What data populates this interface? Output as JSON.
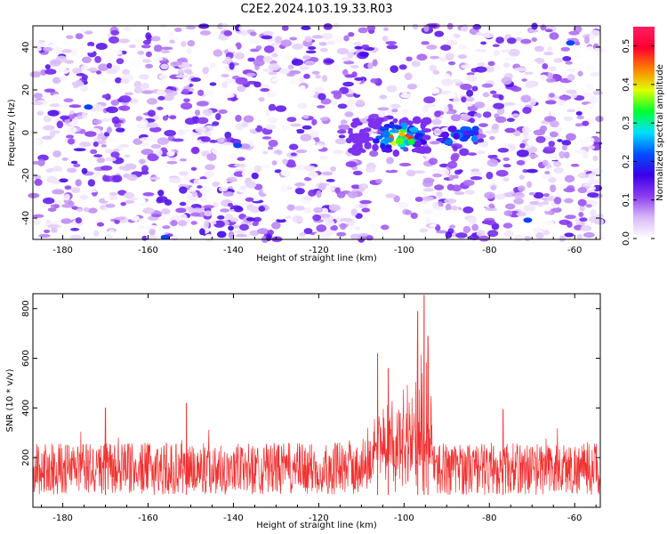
{
  "title": "C2E2.2024.103.19.33.R03",
  "chart_data": [
    {
      "type": "heatmap",
      "xlabel": "Height of straight line (km)",
      "ylabel": "Frequency (Hz)",
      "xlim": [
        -187,
        -54
      ],
      "ylim": [
        -50,
        50
      ],
      "xticks": [
        -180,
        -160,
        -140,
        -120,
        -100,
        -80,
        -60
      ],
      "yticks": [
        -40,
        -20,
        0,
        20,
        40
      ],
      "colorbar": {
        "label": "Normalized spectral amplitude",
        "range": [
          0.0,
          0.55
        ],
        "ticks": [
          0.0,
          0.1,
          0.2,
          0.3,
          0.4,
          0.5
        ],
        "colors": [
          "#ffffff",
          "#d8b8f8",
          "#8c3cf0",
          "#3a00e6",
          "#0050ff",
          "#00e0ff",
          "#00ff30",
          "#e0ff00",
          "#ff8000",
          "#ff0030",
          "#ff1e64"
        ]
      },
      "grid": false,
      "hotspot": {
        "x_range": [
          -113,
          -94
        ],
        "freq_range": [
          -10,
          6
        ],
        "peak_amplitude": 0.5,
        "peak_x": -101,
        "peak_freq": -2
      }
    },
    {
      "type": "line",
      "xlabel": "Height of straight line (km)",
      "ylabel": "SNR (10 * v/v)",
      "xlim": [
        -187,
        -54
      ],
      "ylim": [
        0,
        860
      ],
      "xticks": [
        -180,
        -160,
        -140,
        -120,
        -100,
        -80,
        -60
      ],
      "yticks": [
        200,
        400,
        600,
        800
      ],
      "grid": false,
      "color": "#f03232",
      "baseline_range": [
        50,
        260
      ],
      "peaks": [
        {
          "x": -95.3,
          "y": 855
        },
        {
          "x": -96.8,
          "y": 790
        },
        {
          "x": -94.4,
          "y": 690
        },
        {
          "x": -106.2,
          "y": 620
        },
        {
          "x": -103.7,
          "y": 560
        },
        {
          "x": -151.0,
          "y": 420
        },
        {
          "x": -170.0,
          "y": 400
        },
        {
          "x": -76.8,
          "y": 395
        }
      ]
    }
  ]
}
